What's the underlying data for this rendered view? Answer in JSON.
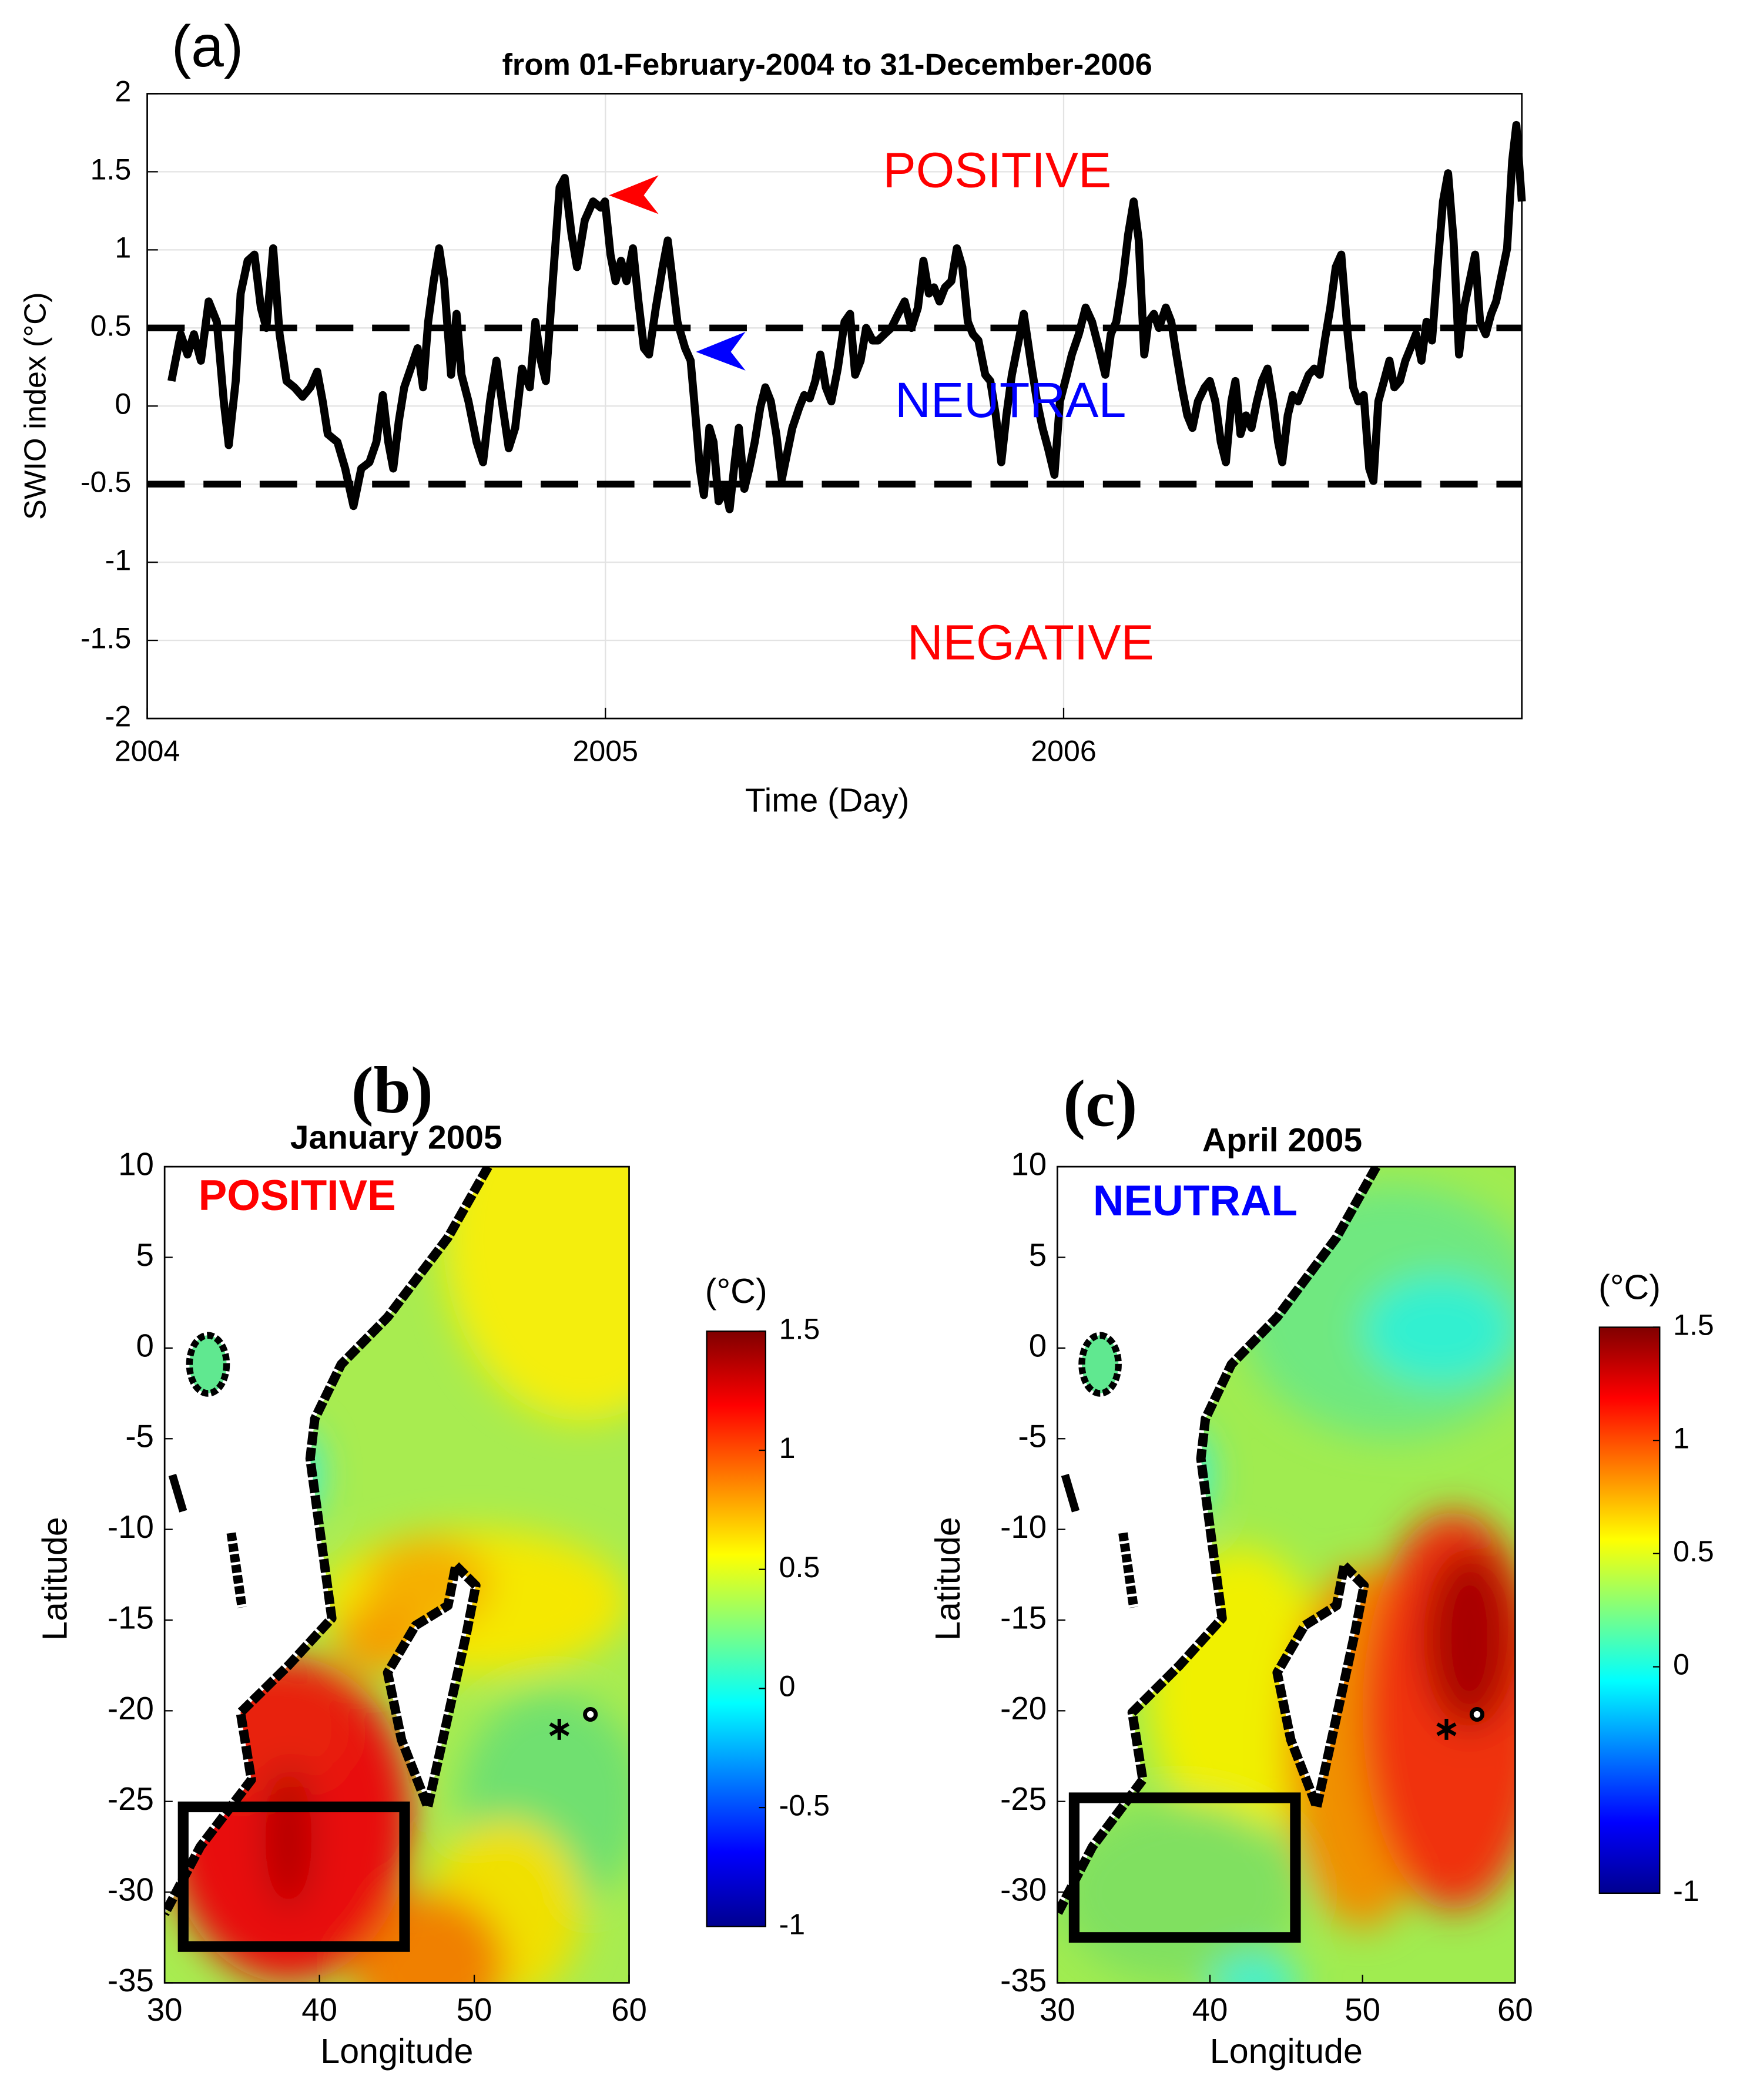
{
  "chart_data": [
    {
      "type": "line",
      "panel": "(a)",
      "title": "from 01-February-2004 to 31-December-2006",
      "xlabel": "Time (Day)",
      "ylabel": "SWIO index (°C)",
      "xlim": [
        2004,
        2007
      ],
      "xticks": [
        2004,
        2005,
        2006
      ],
      "ylim": [
        -2,
        2
      ],
      "yticks": [
        2,
        1.5,
        1,
        0.5,
        0,
        -0.5,
        -1,
        -1.5,
        -2
      ],
      "grid": true,
      "color": "#000000",
      "thresholds": [
        0.5,
        -0.5
      ],
      "annotations": [
        {
          "text": "POSITIVE",
          "color": "#ff0000"
        },
        {
          "text": "NEUTRAL",
          "color": "#0000ff"
        },
        {
          "text": "NEGATIVE",
          "color": "#ff0000"
        }
      ],
      "x": [
        2004.053,
        2004.073,
        2004.088,
        2004.102,
        2004.117,
        2004.134,
        2004.152,
        2004.167,
        2004.178,
        2004.193,
        2004.204,
        2004.219,
        2004.234,
        2004.248,
        2004.26,
        2004.275,
        2004.289,
        2004.304,
        2004.321,
        2004.339,
        2004.356,
        2004.371,
        2004.383,
        2004.394,
        2004.415,
        2004.432,
        2004.45,
        2004.467,
        2004.485,
        2004.5,
        2004.514,
        2004.526,
        2004.537,
        2004.549,
        2004.561,
        2004.575,
        2004.59,
        2004.602,
        2004.613,
        2004.625,
        2004.637,
        2004.648,
        2004.663,
        2004.675,
        2004.686,
        2004.701,
        2004.719,
        2004.733,
        2004.748,
        2004.762,
        2004.774,
        2004.789,
        2004.803,
        2004.818,
        2004.835,
        2004.847,
        2004.859,
        2004.87,
        2004.885,
        2004.9,
        2004.911,
        2004.926,
        2004.938,
        2004.955,
        2004.973,
        2004.99,
        2004.999,
        2005.011,
        2005.022,
        2005.034,
        2005.046,
        2005.06,
        2005.072,
        2005.084,
        2005.095,
        2005.11,
        2005.125,
        2005.136,
        2005.145,
        2005.157,
        2005.174,
        2005.186,
        2005.195,
        2005.206,
        2005.215,
        2005.227,
        2005.236,
        2005.247,
        2005.262,
        2005.271,
        2005.282,
        2005.291,
        2005.303,
        2005.314,
        2005.326,
        2005.338,
        2005.349,
        2005.361,
        2005.373,
        2005.385,
        2005.396,
        2005.408,
        2005.423,
        2005.434,
        2005.446,
        2005.458,
        2005.469,
        2005.481,
        2005.493,
        2005.507,
        2005.522,
        2005.534,
        2005.545,
        2005.557,
        2005.569,
        2005.583,
        2005.595,
        2005.609,
        2005.624,
        2005.639,
        2005.653,
        2005.668,
        2005.682,
        2005.694,
        2005.706,
        2005.717,
        2005.729,
        2005.741,
        2005.755,
        2005.767,
        2005.779,
        2005.791,
        2005.802,
        2005.814,
        2005.829,
        2005.84,
        2005.852,
        2005.864,
        2005.875,
        2005.887,
        2005.902,
        2005.913,
        2005.928,
        2005.942,
        2005.954,
        2005.966,
        2005.98,
        2005.992,
        2006.007,
        2006.018,
        2006.033,
        2006.048,
        2006.062,
        2006.077,
        2006.091,
        2006.103,
        2006.115,
        2006.129,
        2006.141,
        2006.153,
        2006.164,
        2006.176,
        2006.185,
        2006.197,
        2006.208,
        2006.223,
        2006.235,
        2006.246,
        2006.258,
        2006.27,
        2006.281,
        2006.293,
        2006.308,
        2006.319,
        2006.331,
        2006.343,
        2006.354,
        2006.366,
        2006.375,
        2006.386,
        2006.398,
        2006.41,
        2006.422,
        2006.433,
        2006.445,
        2006.457,
        2006.468,
        2006.477,
        2006.489,
        2006.5,
        2006.512,
        2006.524,
        2006.535,
        2006.547,
        2006.559,
        2006.57,
        2006.582,
        2006.594,
        2006.606,
        2006.62,
        2006.632,
        2006.643,
        2006.655,
        2006.667,
        2006.676,
        2006.687,
        2006.699,
        2006.711,
        2006.722,
        2006.734,
        2006.746,
        2006.757,
        2006.769,
        2006.781,
        2006.792,
        2006.804,
        2006.816,
        2006.828,
        2006.839,
        2006.851,
        2006.863,
        2006.874,
        2006.886,
        2006.898,
        2006.909,
        2006.921,
        2006.933,
        2006.944,
        2006.956,
        2006.968,
        2006.979,
        2006.988,
        2007.0
      ],
      "values": [
        0.16,
        0.46,
        0.33,
        0.46,
        0.29,
        0.67,
        0.54,
        0.03,
        -0.25,
        0.16,
        0.72,
        0.93,
        0.97,
        0.63,
        0.5,
        1.01,
        0.46,
        0.16,
        0.12,
        0.06,
        0.12,
        0.22,
        0.03,
        -0.18,
        -0.23,
        -0.4,
        -0.64,
        -0.4,
        -0.36,
        -0.23,
        0.07,
        -0.23,
        -0.4,
        -0.1,
        0.12,
        0.24,
        0.37,
        0.12,
        0.54,
        0.8,
        1.01,
        0.8,
        0.2,
        0.59,
        0.2,
        0.03,
        -0.23,
        -0.36,
        0.03,
        0.29,
        0.03,
        -0.27,
        -0.14,
        0.24,
        0.12,
        0.54,
        0.29,
        0.16,
        0.8,
        1.4,
        1.46,
        1.1,
        0.89,
        1.19,
        1.31,
        1.27,
        1.31,
        0.97,
        0.8,
        0.93,
        0.8,
        1.01,
        0.67,
        0.37,
        0.33,
        0.63,
        0.89,
        1.06,
        0.84,
        0.54,
        0.37,
        0.29,
        -0.01,
        -0.4,
        -0.57,
        -0.14,
        -0.23,
        -0.61,
        -0.53,
        -0.66,
        -0.36,
        -0.14,
        -0.53,
        -0.4,
        -0.23,
        -0.01,
        0.12,
        0.03,
        -0.18,
        -0.47,
        -0.31,
        -0.14,
        -0.01,
        0.07,
        0.05,
        0.16,
        0.33,
        0.12,
        0.03,
        0.24,
        0.54,
        0.59,
        0.2,
        0.29,
        0.5,
        0.42,
        0.42,
        0.46,
        0.5,
        0.59,
        0.67,
        0.5,
        0.63,
        0.93,
        0.72,
        0.76,
        0.67,
        0.76,
        0.8,
        1.01,
        0.89,
        0.54,
        0.46,
        0.42,
        0.2,
        0.16,
        -0.06,
        -0.36,
        -0.06,
        0.2,
        0.42,
        0.59,
        0.29,
        0.03,
        -0.14,
        -0.27,
        -0.44,
        0.03,
        0.2,
        0.33,
        0.46,
        0.63,
        0.54,
        0.37,
        0.2,
        0.46,
        0.54,
        0.8,
        1.1,
        1.31,
        1.06,
        0.33,
        0.54,
        0.59,
        0.5,
        0.63,
        0.54,
        0.33,
        0.12,
        -0.06,
        -0.14,
        0.03,
        0.12,
        0.16,
        0.03,
        -0.23,
        -0.36,
        0.03,
        0.16,
        -0.18,
        -0.06,
        -0.14,
        0.03,
        0.16,
        0.24,
        0.03,
        -0.23,
        -0.36,
        -0.06,
        0.07,
        0.03,
        0.12,
        0.2,
        0.24,
        0.2,
        0.42,
        0.63,
        0.89,
        0.97,
        0.46,
        0.12,
        0.03,
        0.07,
        -0.4,
        -0.48,
        0.03,
        0.16,
        0.29,
        0.12,
        0.16,
        0.29,
        0.37,
        0.46,
        0.29,
        0.54,
        0.42,
        0.89,
        1.31,
        1.49,
        1.06,
        0.33,
        0.63,
        0.8,
        0.97,
        0.54,
        0.46,
        0.59,
        0.67,
        0.84,
        1.01,
        1.57,
        1.8,
        1.31
      ]
    },
    {
      "type": "contour_map",
      "panel": "(b)",
      "title": "January 2005",
      "annotation": {
        "text": "POSITIVE",
        "color": "#ff0000"
      },
      "xlabel": "Longitude",
      "ylabel": "Latitude",
      "xlim": [
        30,
        60
      ],
      "xticks": [
        30,
        40,
        50,
        60
      ],
      "ylim": [
        -35,
        10
      ],
      "yticks": [
        10,
        5,
        0,
        -5,
        -10,
        -15,
        -20,
        -25,
        -30,
        -35
      ],
      "colorbar_label": "(°C)",
      "colorbar_lim": [
        -1,
        1.5
      ],
      "colorbar_ticks": [
        1.5,
        1,
        0.5,
        0,
        -0.5,
        -1
      ],
      "region": {
        "lon": [
          31.2,
          45.5
        ],
        "lat": [
          -33,
          -25.3
        ]
      }
    },
    {
      "type": "contour_map",
      "panel": "(c)",
      "title": "April 2005",
      "annotation": {
        "text": "NEUTRAL",
        "color": "#0000ff"
      },
      "xlabel": "Longitude",
      "ylabel": "Latitude",
      "xlim": [
        30,
        60
      ],
      "xticks": [
        30,
        40,
        50,
        60
      ],
      "ylim": [
        -35,
        10
      ],
      "yticks": [
        10,
        5,
        0,
        -5,
        -10,
        -15,
        -20,
        -25,
        -30,
        -35
      ],
      "colorbar_label": "(°C)",
      "colorbar_lim": [
        -1,
        1.5
      ],
      "colorbar_ticks": [
        1.5,
        1,
        0.5,
        0,
        -1
      ],
      "region": {
        "lon": [
          31.1,
          45.6
        ],
        "lat": [
          -32.5,
          -24.8
        ]
      }
    }
  ]
}
